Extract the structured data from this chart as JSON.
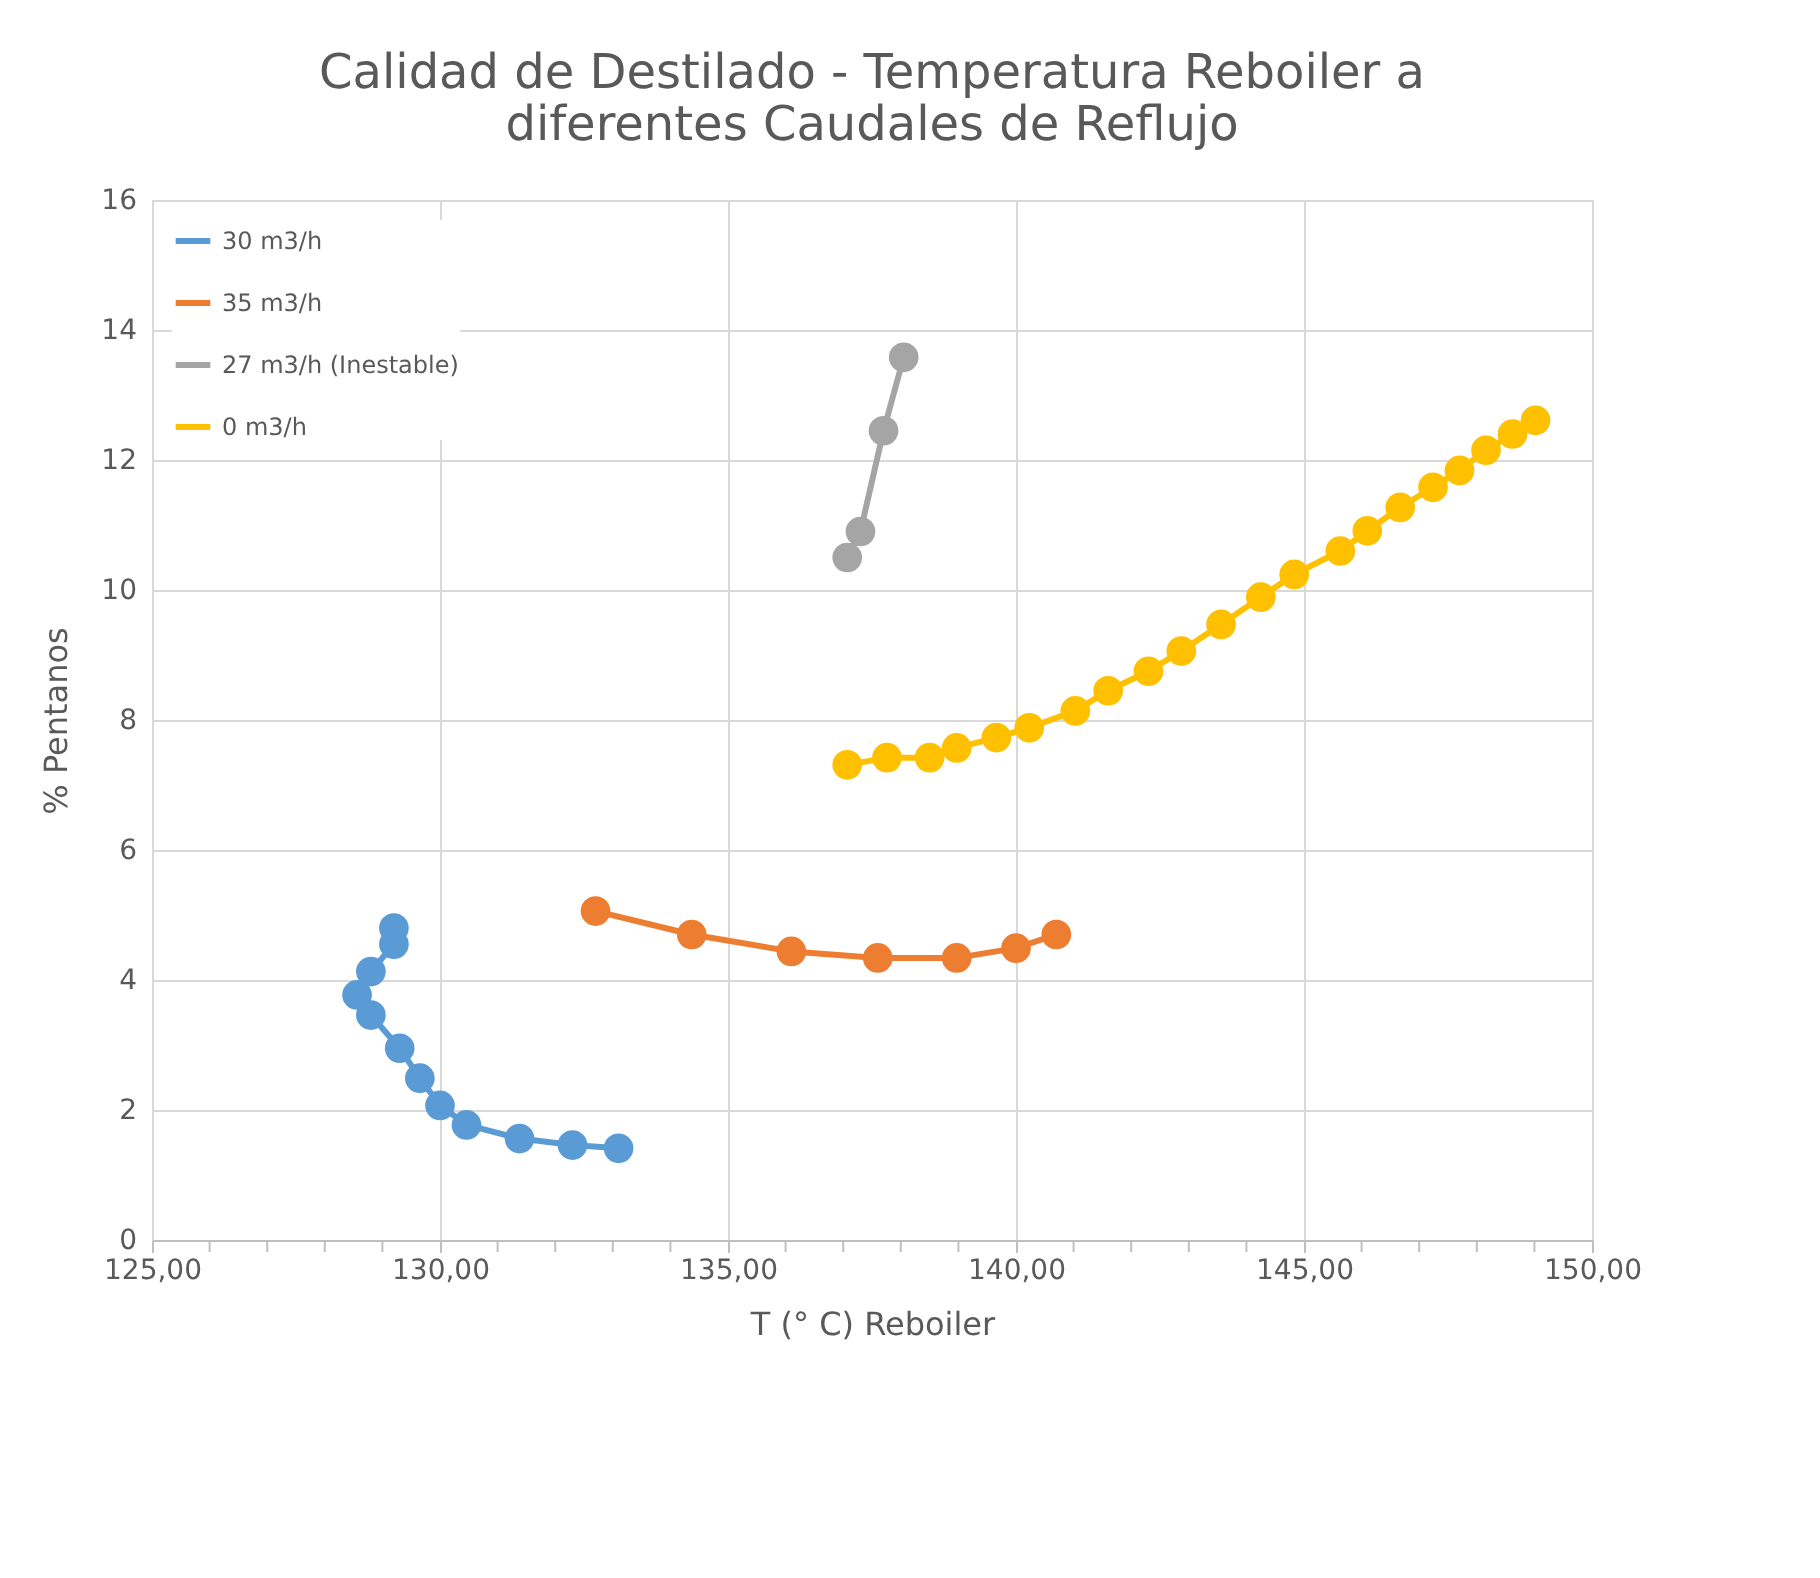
{
  "chart_data": {
    "type": "line",
    "title": "Calidad de Destilado - Temperatura Reboiler a diferentes Caudales de Reflujo",
    "xlabel": "T (° C) Reboiler",
    "ylabel": "% Pentanos",
    "xlim": [
      125,
      150
    ],
    "ylim": [
      0,
      16
    ],
    "xticks": [
      {
        "value": 125,
        "label": "125,00"
      },
      {
        "value": 126,
        "label": null
      },
      {
        "value": 127,
        "label": null
      },
      {
        "value": 128,
        "label": null
      },
      {
        "value": 129,
        "label": null
      },
      {
        "value": 130,
        "label": "130,00"
      },
      {
        "value": 131,
        "label": null
      },
      {
        "value": 132,
        "label": null
      },
      {
        "value": 133,
        "label": null
      },
      {
        "value": 134,
        "label": null
      },
      {
        "value": 135,
        "label": "135,00"
      },
      {
        "value": 136,
        "label": null
      },
      {
        "value": 137,
        "label": null
      },
      {
        "value": 138,
        "label": null
      },
      {
        "value": 139,
        "label": null
      },
      {
        "value": 140,
        "label": "140,00"
      },
      {
        "value": 141,
        "label": null
      },
      {
        "value": 142,
        "label": null
      },
      {
        "value": 143,
        "label": null
      },
      {
        "value": 144,
        "label": null
      },
      {
        "value": 145,
        "label": "145,00"
      },
      {
        "value": 146,
        "label": null
      },
      {
        "value": 147,
        "label": null
      },
      {
        "value": 148,
        "label": null
      },
      {
        "value": 149,
        "label": null
      },
      {
        "value": 150,
        "label": "150,00"
      }
    ],
    "yticks": [
      0,
      2,
      4,
      6,
      8,
      10,
      12,
      14,
      16
    ],
    "grid": true,
    "legend": "top left",
    "marker": "circle",
    "line_style": "solid",
    "series": [
      {
        "name": "30 m3/h",
        "color": "#5b9bd5",
        "x": [
          129.2,
          129.2,
          128.8,
          128.56,
          128.8,
          129.3,
          129.65,
          130.0,
          130.46,
          131.38,
          132.3,
          133.1
        ],
        "values": [
          4.8,
          4.55,
          4.13,
          3.77,
          3.46,
          2.95,
          2.49,
          2.07,
          1.77,
          1.56,
          1.46,
          1.41
        ]
      },
      {
        "name": "35 m3/h",
        "color": "#ed7d31",
        "x": [
          132.7,
          134.37,
          136.1,
          137.6,
          138.97,
          140.0,
          140.7
        ],
        "values": [
          5.06,
          4.7,
          4.44,
          4.34,
          4.34,
          4.49,
          4.7
        ]
      },
      {
        "name": "27 m3/h (Inestable)",
        "color": "#a5a5a5",
        "x": [
          137.07,
          137.3,
          137.7,
          138.05
        ],
        "values": [
          10.5,
          10.9,
          12.45,
          13.58
        ]
      },
      {
        "name": "0 m3/h",
        "color": "#ffc000",
        "x": [
          137.07,
          137.76,
          138.5,
          138.97,
          139.66,
          140.23,
          141.03,
          141.6,
          142.3,
          142.87,
          143.56,
          144.25,
          144.83,
          145.63,
          146.1,
          146.67,
          147.24,
          147.7,
          148.16,
          148.62,
          149.02
        ],
        "values": [
          7.31,
          7.42,
          7.42,
          7.57,
          7.73,
          7.88,
          8.14,
          8.45,
          8.75,
          9.06,
          9.47,
          9.89,
          10.24,
          10.6,
          10.91,
          11.27,
          11.58,
          11.84,
          12.15,
          12.4,
          12.61
        ]
      }
    ]
  }
}
